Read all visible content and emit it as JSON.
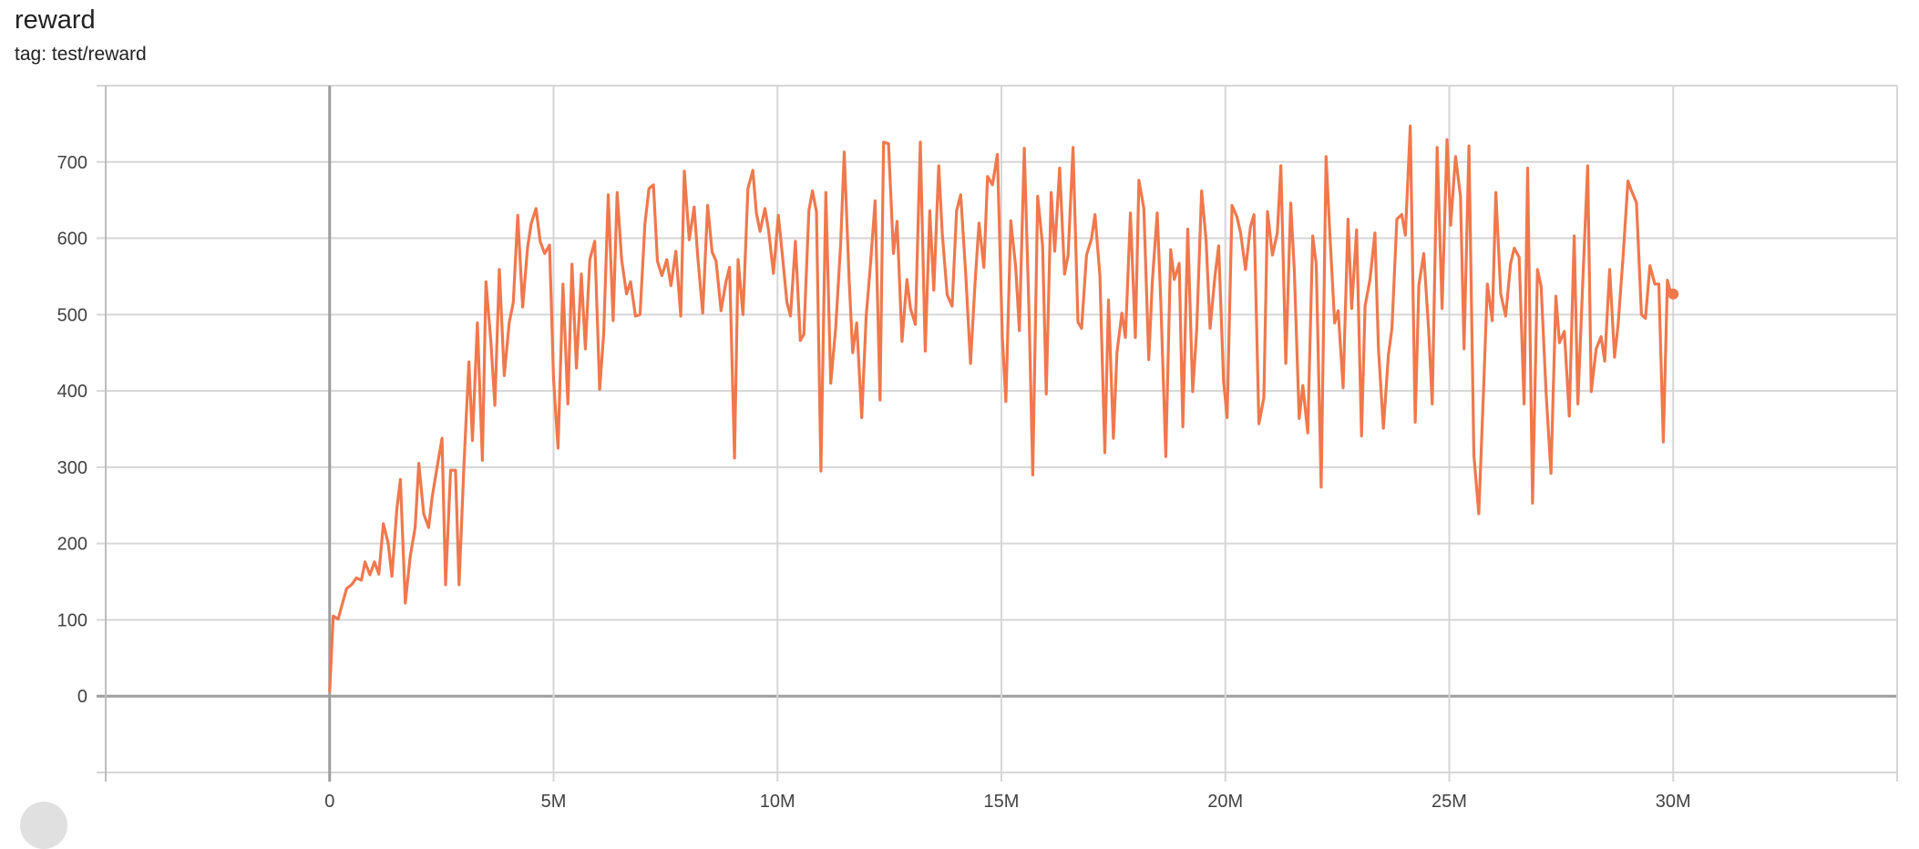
{
  "header": {
    "title": "reward",
    "subtitle": "tag: test/reward"
  },
  "chart_data": {
    "type": "line",
    "title": "reward",
    "subtitle": "tag: test/reward",
    "xlabel": "",
    "ylabel": "",
    "xlim": [
      -5,
      35
    ],
    "ylim": [
      -100,
      800
    ],
    "x_ticks": [
      0,
      5,
      10,
      15,
      20,
      25,
      30
    ],
    "x_tick_labels": [
      "0",
      "5M",
      "10M",
      "15M",
      "20M",
      "25M",
      "30M"
    ],
    "y_ticks": [
      0,
      100,
      200,
      300,
      400,
      500,
      600,
      700
    ],
    "y_tick_labels": [
      "0",
      "100",
      "200",
      "300",
      "400",
      "500",
      "600",
      "700"
    ],
    "grid": true,
    "line_color": "#f0784c",
    "series": [
      {
        "x": [
          0,
          0.08,
          0.19,
          0.38,
          0.49,
          0.6,
          0.71,
          0.79,
          0.9,
          1.0,
          1.1,
          1.2,
          1.31,
          1.39,
          1.5,
          1.58,
          1.69,
          1.8,
          1.91,
          1.99,
          2.1,
          2.21,
          2.29,
          2.4,
          2.51,
          2.59,
          2.7,
          2.81,
          2.89,
          3.0,
          3.11,
          3.19,
          3.3,
          3.41,
          3.49,
          3.6,
          3.69,
          3.79,
          3.9,
          4.01,
          4.1,
          4.2,
          4.31,
          4.42,
          4.5,
          4.61,
          4.7,
          4.8,
          4.91,
          5.0,
          5.1,
          5.21,
          5.32,
          5.41,
          5.51,
          5.62,
          5.71,
          5.81,
          5.92,
          6.03,
          6.12,
          6.22,
          6.33,
          6.42,
          6.52,
          6.63,
          6.72,
          6.83,
          6.93,
          7.04,
          7.13,
          7.23,
          7.32,
          7.42,
          7.53,
          7.62,
          7.73,
          7.84,
          7.92,
          8.03,
          8.14,
          8.22,
          8.33,
          8.44,
          8.54,
          8.63,
          8.74,
          8.85,
          8.93,
          9.04,
          9.12,
          9.23,
          9.34,
          9.45,
          9.53,
          9.61,
          9.72,
          9.8,
          9.91,
          10.02,
          10.1,
          10.21,
          10.29,
          10.4,
          10.51,
          10.59,
          10.7,
          10.78,
          10.87,
          10.97,
          11.08,
          11.19,
          11.3,
          11.41,
          11.49,
          11.6,
          11.68,
          11.77,
          11.88,
          11.98,
          12.07,
          12.18,
          12.29,
          12.37,
          12.48,
          12.59,
          12.67,
          12.78,
          12.89,
          12.97,
          13.08,
          13.19,
          13.3,
          13.4,
          13.49,
          13.6,
          13.68,
          13.79,
          13.9,
          14.0,
          14.09,
          14.2,
          14.31,
          14.41,
          14.5,
          14.61,
          14.69,
          14.8,
          14.91,
          15.02,
          15.1,
          15.21,
          15.32,
          15.4,
          15.51,
          15.62,
          15.7,
          15.81,
          15.92,
          16.0,
          16.11,
          16.19,
          16.3,
          16.41,
          16.49,
          16.6,
          16.71,
          16.79,
          16.9,
          17.01,
          17.09,
          17.2,
          17.31,
          17.39,
          17.5,
          17.58,
          17.69,
          17.77,
          17.88,
          17.99,
          18.07,
          18.18,
          18.29,
          18.37,
          18.48,
          18.56,
          18.67,
          18.78,
          18.86,
          18.97,
          19.05,
          19.16,
          19.27,
          19.36,
          19.47,
          19.57,
          19.66,
          19.77,
          19.85,
          19.96,
          20.04,
          20.15,
          20.26,
          20.34,
          20.45,
          20.56,
          20.64,
          20.75,
          20.86,
          20.94,
          21.05,
          21.16,
          21.24,
          21.35,
          21.46,
          21.54,
          21.65,
          21.73,
          21.84,
          21.95,
          22.03,
          22.14,
          22.25,
          22.33,
          22.44,
          22.52,
          22.63,
          22.74,
          22.82,
          22.93,
          23.04,
          23.12,
          23.23,
          23.34,
          23.42,
          23.53,
          23.64,
          23.72,
          23.83,
          23.94,
          24.02,
          24.13,
          24.24,
          24.32,
          24.43,
          24.54,
          24.62,
          24.73,
          24.84,
          24.95,
          25.03,
          25.14,
          25.25,
          25.33,
          25.44,
          25.55,
          25.66,
          25.77,
          25.85,
          25.96,
          26.04,
          26.15,
          26.26,
          26.37,
          26.45,
          26.56,
          26.67,
          26.75,
          26.86,
          26.97,
          27.05,
          27.16,
          27.27,
          27.38,
          27.46,
          27.57,
          27.68,
          27.79,
          27.87,
          27.98,
          28.09,
          28.17,
          28.28,
          28.39,
          28.47,
          28.58,
          28.69,
          28.77,
          28.88,
          28.99,
          29.07,
          29.18,
          29.29,
          29.38,
          29.48,
          29.59,
          29.68,
          29.78,
          29.87,
          29.95,
          30.0
        ],
        "y": [
          6,
          105,
          101,
          141,
          146,
          155,
          152,
          176,
          159,
          176,
          160,
          226,
          200,
          157,
          245,
          284,
          122,
          183,
          221,
          305,
          239,
          221,
          261,
          300,
          338,
          146,
          296,
          296,
          146,
          304,
          438,
          335,
          489,
          309,
          543,
          465,
          381,
          559,
          420,
          489,
          516,
          630,
          510,
          588,
          619,
          639,
          596,
          580,
          591,
          415,
          325,
          540,
          383,
          566,
          430,
          553,
          455,
          572,
          596,
          402,
          474,
          657,
          492,
          660,
          572,
          527,
          543,
          498,
          500,
          619,
          665,
          670,
          570,
          551,
          572,
          538,
          583,
          498,
          688,
          598,
          641,
          575,
          502,
          643,
          582,
          570,
          505,
          543,
          562,
          312,
          572,
          500,
          665,
          689,
          633,
          609,
          639,
          611,
          554,
          630,
          583,
          516,
          498,
          596,
          466,
          474,
          636,
          662,
          635,
          295,
          660,
          410,
          482,
          593,
          713,
          545,
          450,
          489,
          365,
          498,
          561,
          649,
          388,
          726,
          724,
          580,
          622,
          465,
          546,
          508,
          487,
          726,
          452,
          636,
          532,
          695,
          606,
          526,
          511,
          636,
          657,
          556,
          436,
          540,
          620,
          562,
          681,
          670,
          710,
          471,
          386,
          623,
          562,
          479,
          718,
          494,
          290,
          655,
          590,
          396,
          660,
          583,
          692,
          553,
          578,
          719,
          490,
          482,
          578,
          599,
          631,
          551,
          319,
          519,
          338,
          450,
          502,
          470,
          633,
          470,
          676,
          639,
          441,
          543,
          633,
          514,
          314,
          585,
          546,
          567,
          353,
          612,
          399,
          479,
          662,
          598,
          482,
          551,
          590,
          413,
          365,
          643,
          628,
          607,
          559,
          615,
          631,
          357,
          391,
          635,
          578,
          607,
          695,
          436,
          646,
          559,
          364,
          407,
          345,
          603,
          566,
          274,
          707,
          609,
          489,
          505,
          404,
          625,
          508,
          611,
          341,
          511,
          546,
          607,
          455,
          351,
          447,
          482,
          625,
          631,
          604,
          747,
          359,
          538,
          580,
          479,
          383,
          719,
          508,
          729,
          617,
          707,
          655,
          455,
          721,
          316,
          239,
          407,
          540,
          492,
          660,
          527,
          498,
          567,
          587,
          575,
          383,
          692,
          253,
          559,
          537,
          399,
          292,
          524,
          463,
          478,
          367,
          603,
          383,
          542,
          695,
          399,
          455,
          471,
          439,
          559,
          444,
          487,
          575,
          675,
          662,
          647,
          500,
          495,
          564,
          540,
          540,
          333,
          545,
          527,
          527
        ]
      }
    ]
  }
}
